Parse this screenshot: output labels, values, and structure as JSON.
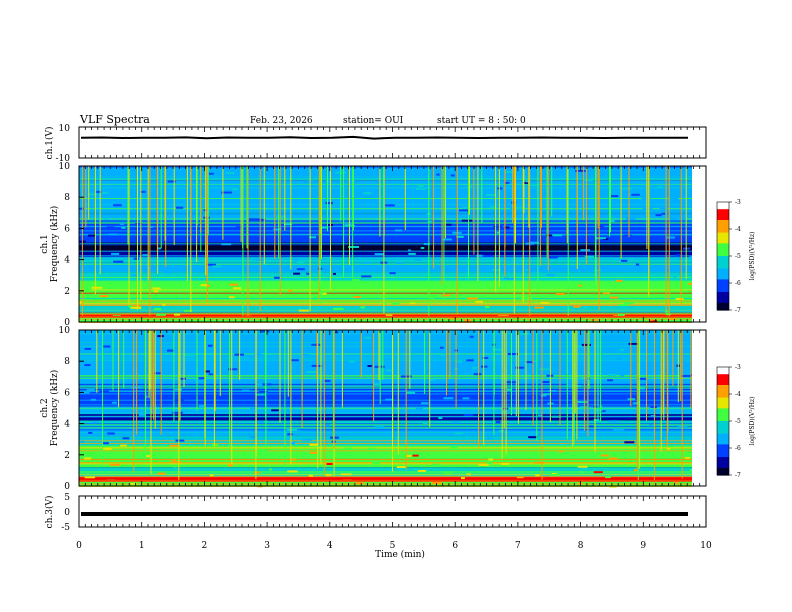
{
  "header": {
    "title": "VLF Spectra",
    "date": "Feb. 23, 2026",
    "station": "station= OUI",
    "start_ut": "start UT =  8 : 50: 0"
  },
  "colorbar": {
    "label": "log(PSD)(V²/Hz)",
    "ticks": [
      "-3",
      "-4",
      "-5",
      "-6",
      "-7"
    ],
    "colors": [
      "#ffffff",
      "#ff0000",
      "#ffa000",
      "#e6e600",
      "#40ff40",
      "#00d0d0",
      "#00b0ff",
      "#0040ff",
      "#0000a0",
      "#000030"
    ]
  },
  "chart_data": [
    {
      "type": "line",
      "panel": "ch1-waveform",
      "ylabel": "ch.1(V)",
      "yticks": [
        "10",
        "-10"
      ],
      "ylim": [
        -10,
        10
      ],
      "xlim": [
        0,
        10
      ],
      "series": [
        {
          "values": [
            3.0,
            3.2,
            2.9,
            3.1,
            3.0,
            3.3,
            2.8,
            3.2,
            3.1,
            3.0,
            3.4,
            2.9,
            3.0,
            3.6,
            2.5,
            3.1,
            3.0,
            3.2,
            3.0,
            2.9,
            3.1,
            3.0,
            3.2,
            3.1,
            3.0,
            2.9,
            3.1,
            3.0,
            3.0,
            3.1
          ]
        }
      ]
    },
    {
      "type": "heatmap",
      "panel": "ch1-spectrogram",
      "ylabel_top": "ch.1",
      "ylabel": "Frequency (kHz)",
      "yticks": [
        "0",
        "2",
        "4",
        "6",
        "8",
        "10"
      ],
      "xlim": [
        0,
        10
      ],
      "ylim": [
        0,
        10
      ]
    },
    {
      "type": "heatmap",
      "panel": "ch2-spectrogram",
      "ylabel_top": "ch.2",
      "ylabel": "Frequency (kHz)",
      "yticks": [
        "0",
        "2",
        "4",
        "6",
        "8",
        "10"
      ],
      "xlim": [
        0,
        10
      ],
      "ylim": [
        0,
        10
      ]
    },
    {
      "type": "line",
      "panel": "ch3-waveform",
      "ylabel": "ch.3(V)",
      "yticks": [
        "5",
        "0",
        "-5"
      ],
      "ylim": [
        -5,
        5
      ],
      "xlim": [
        0,
        10
      ],
      "series": [
        {
          "values": [
            -0.8,
            -0.8,
            -0.8,
            -0.8,
            -0.8,
            -0.8,
            -0.8,
            -0.8,
            -0.8,
            -0.8
          ]
        }
      ]
    }
  ],
  "x_axis": {
    "label": "Time (min)",
    "ticks": [
      "0",
      "1",
      "2",
      "3",
      "4",
      "5",
      "6",
      "7",
      "8",
      "9",
      "10"
    ]
  }
}
